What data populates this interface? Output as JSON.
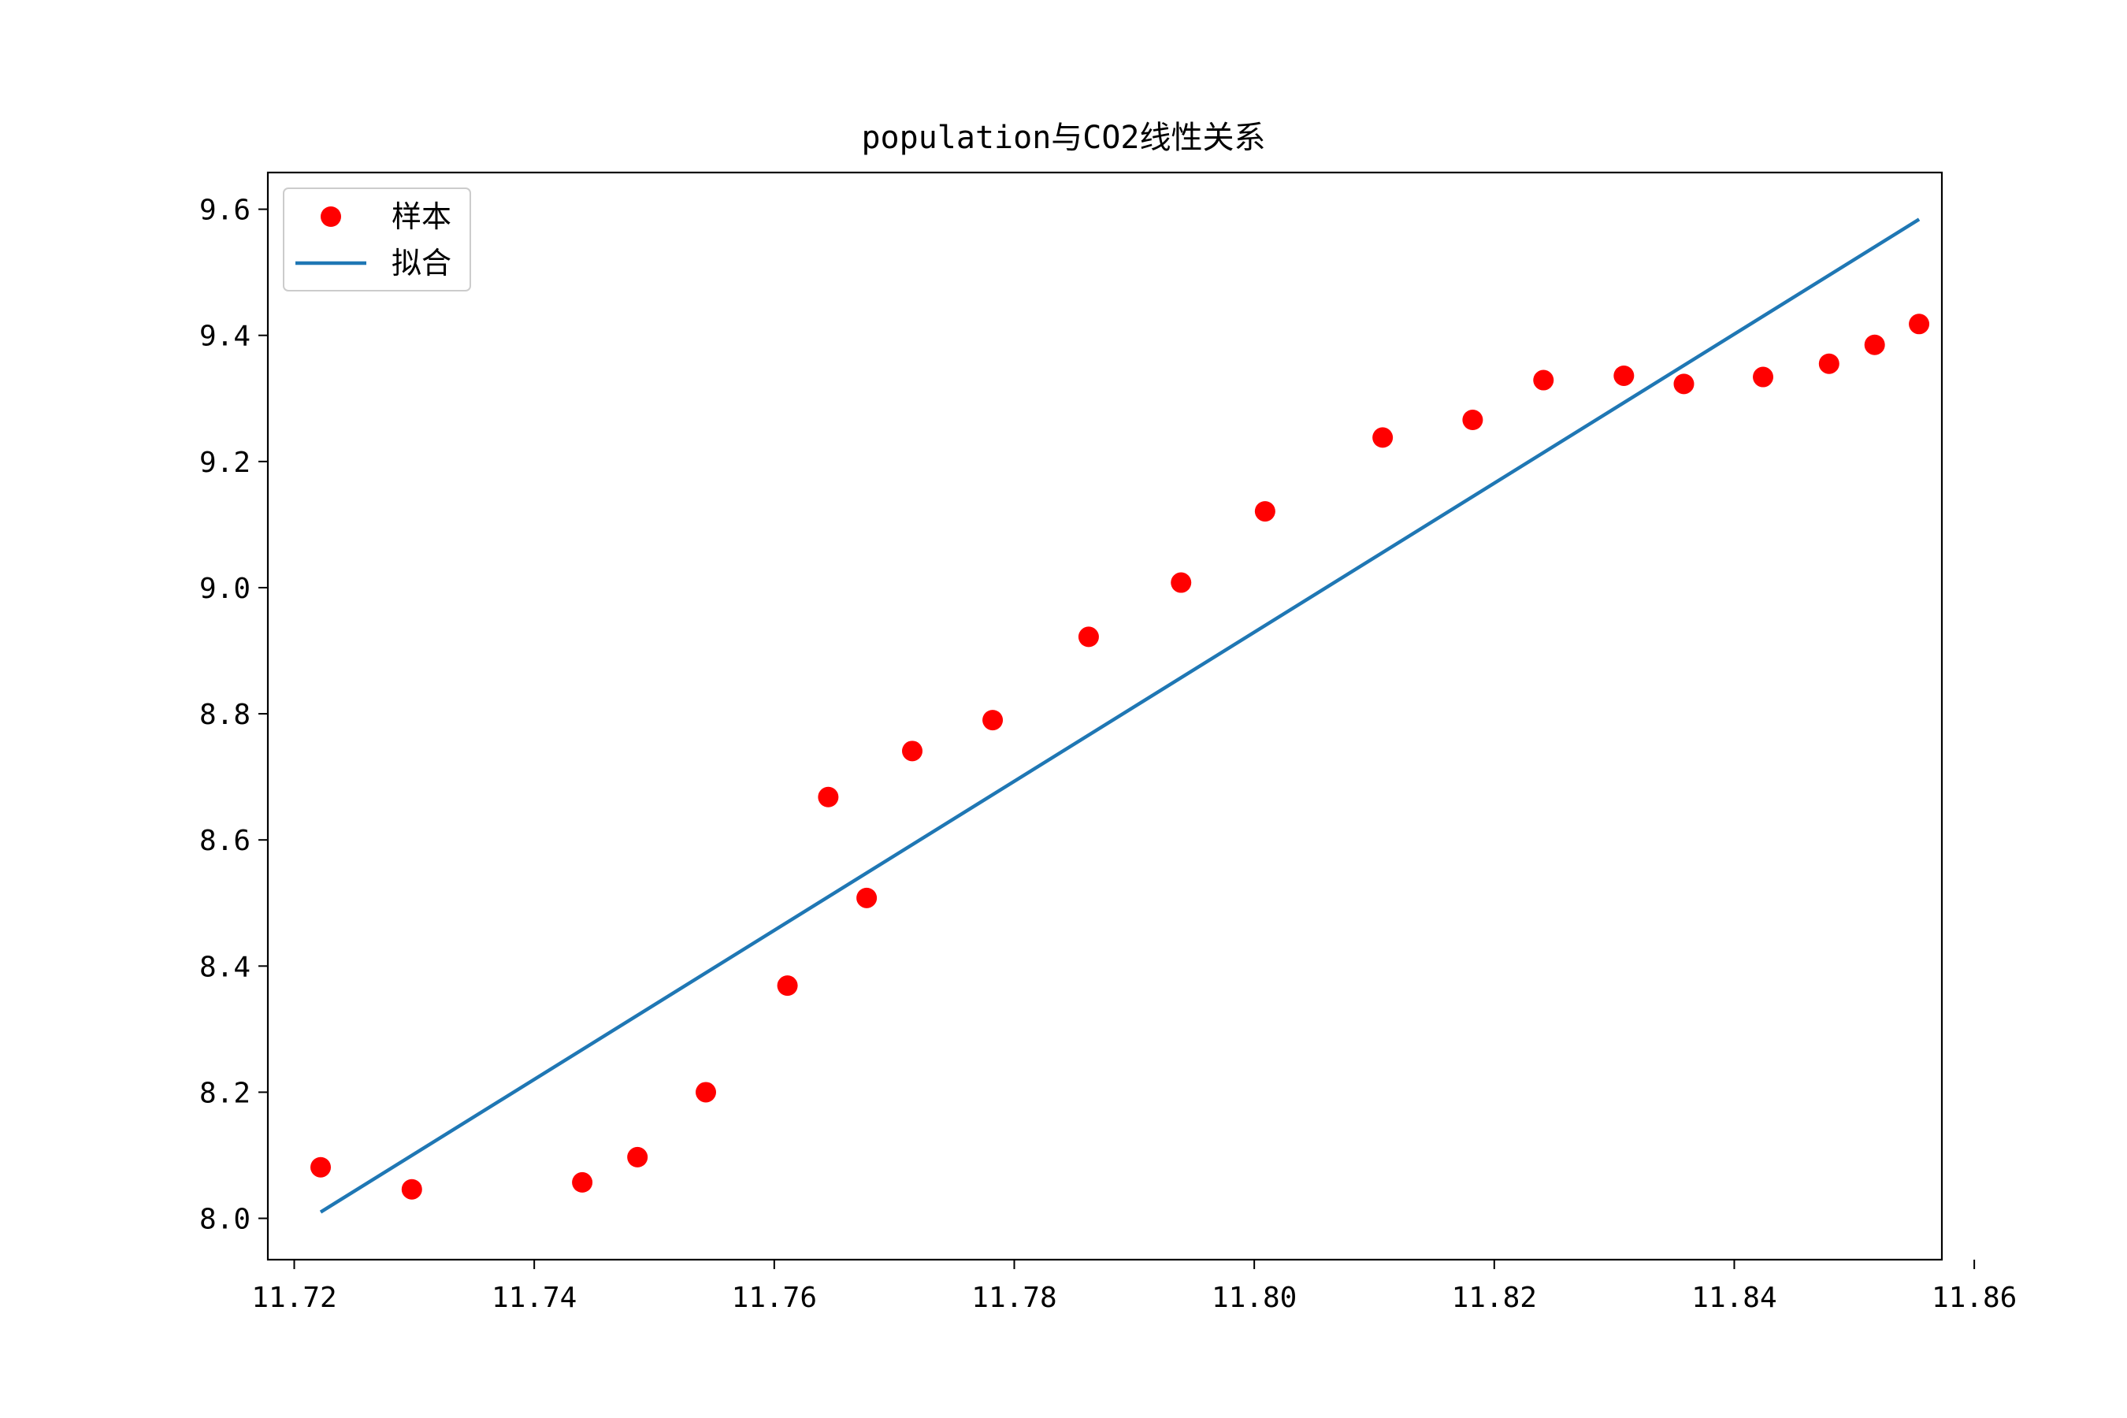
{
  "chart_data": {
    "type": "scatter",
    "title": "population与CO2线性关系",
    "xlabel": "",
    "ylabel": "",
    "xlim": [
      11.7178,
      11.8573
    ],
    "ylim": [
      7.9345,
      9.6582
    ],
    "xticks": [
      11.72,
      11.74,
      11.76,
      11.78,
      11.8,
      11.82,
      11.84,
      11.86
    ],
    "xtick_labels": [
      "11.72",
      "11.74",
      "11.76",
      "11.78",
      "11.80",
      "11.82",
      "11.84",
      "11.86"
    ],
    "yticks": [
      8.0,
      8.2,
      8.4,
      8.6,
      8.8,
      9.0,
      9.2,
      9.4,
      9.6
    ],
    "ytick_labels": [
      "8.0",
      "8.2",
      "8.4",
      "8.6",
      "8.8",
      "9.0",
      "9.2",
      "9.4",
      "9.6"
    ],
    "grid": false,
    "legend_position": "top-left",
    "series": [
      {
        "name": "样本",
        "kind": "scatter",
        "color": "#ff0000",
        "points": [
          [
            11.7222,
            8.081
          ],
          [
            11.7298,
            8.046
          ],
          [
            11.744,
            8.057
          ],
          [
            11.7486,
            8.097
          ],
          [
            11.7543,
            8.2
          ],
          [
            11.7611,
            8.369
          ],
          [
            11.7645,
            8.668
          ],
          [
            11.7677,
            8.508
          ],
          [
            11.7715,
            8.741
          ],
          [
            11.7782,
            8.79
          ],
          [
            11.7862,
            8.922
          ],
          [
            11.7939,
            9.008
          ],
          [
            11.8009,
            9.121
          ],
          [
            11.8107,
            9.238
          ],
          [
            11.8182,
            9.266
          ],
          [
            11.8241,
            9.329
          ],
          [
            11.8308,
            9.336
          ],
          [
            11.8358,
            9.323
          ],
          [
            11.8424,
            9.334
          ],
          [
            11.8479,
            9.355
          ],
          [
            11.8517,
            9.385
          ],
          [
            11.8554,
            9.418
          ]
        ]
      },
      {
        "name": "拟合",
        "kind": "line",
        "color": "#1f77b4",
        "points": [
          [
            11.7222,
            8.01
          ],
          [
            11.8554,
            9.584
          ]
        ]
      }
    ]
  }
}
